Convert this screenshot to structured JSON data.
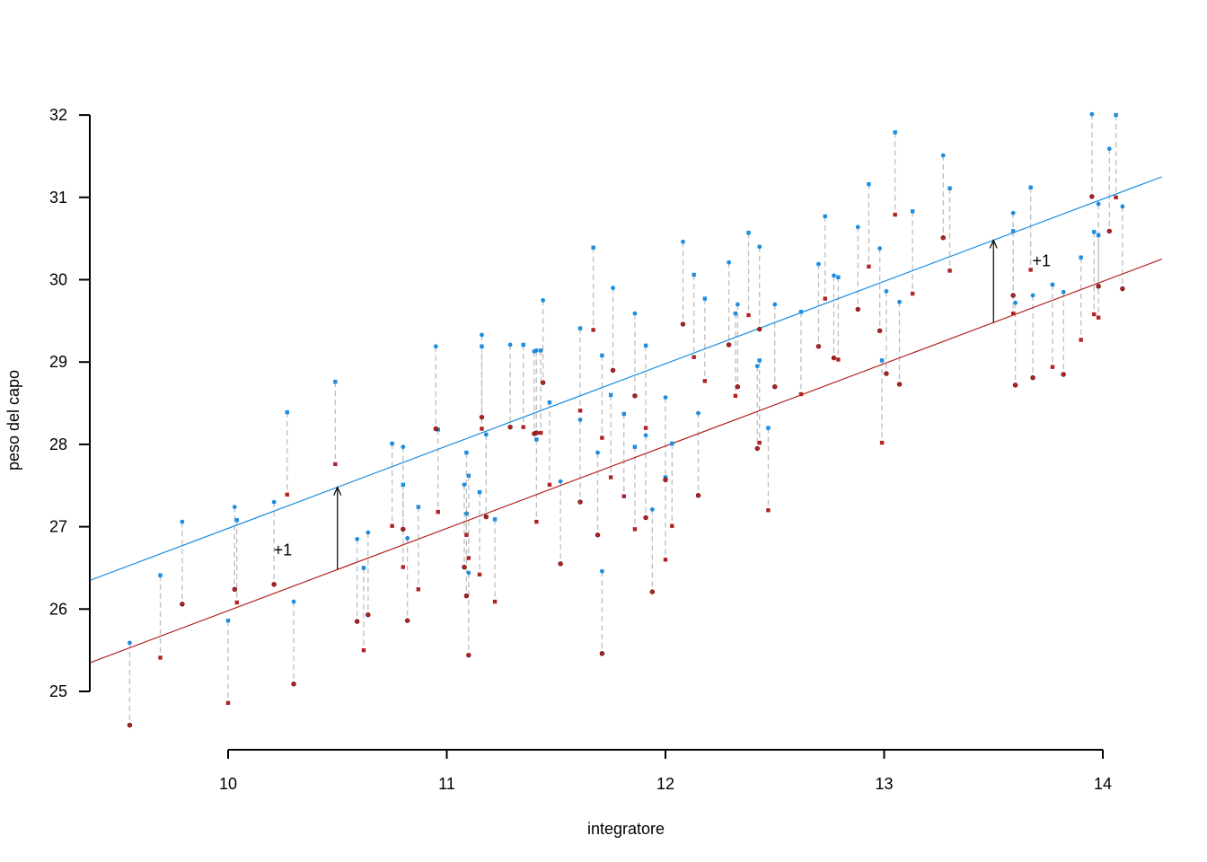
{
  "chart_data": {
    "type": "scatter",
    "title": "",
    "xlabel": "integratore",
    "ylabel": "peso del capo",
    "xlim": [
      9.37,
      14.27
    ],
    "ylim": [
      24.6,
      32.0
    ],
    "x_ticks": [
      "10",
      "11",
      "12",
      "13",
      "14"
    ],
    "y_ticks": [
      "25",
      "26",
      "27",
      "28",
      "29",
      "30",
      "31",
      "32"
    ],
    "grid": false,
    "colors": {
      "blue": "#1C8DE0",
      "red": "#B22222",
      "segment": "#BEBEBE",
      "arrow": "#000000"
    },
    "x": [
      9.55,
      9.69,
      9.79,
      10.0,
      10.03,
      10.04,
      10.21,
      10.27,
      10.3,
      10.49,
      10.59,
      10.62,
      10.64,
      10.75,
      10.8,
      10.8,
      10.82,
      10.87,
      10.95,
      10.96,
      11.08,
      11.09,
      11.09,
      11.1,
      11.1,
      11.15,
      11.16,
      11.16,
      11.18,
      11.22,
      11.29,
      11.35,
      11.4,
      11.41,
      11.41,
      11.43,
      11.44,
      11.47,
      11.52,
      11.61,
      11.61,
      11.67,
      11.69,
      11.71,
      11.71,
      11.75,
      11.76,
      11.81,
      11.86,
      11.86,
      11.91,
      11.91,
      11.94,
      12.0,
      12.0,
      12.03,
      12.08,
      12.13,
      12.15,
      12.18,
      12.29,
      12.32,
      12.33,
      12.38,
      12.42,
      12.43,
      12.43,
      12.47,
      12.5,
      12.62,
      12.7,
      12.73,
      12.77,
      12.79,
      12.88,
      12.93,
      12.98,
      12.99,
      13.01,
      13.05,
      13.07,
      13.13,
      13.27,
      13.3,
      13.59,
      13.59,
      13.6,
      13.67,
      13.68,
      13.77,
      13.82,
      13.9,
      13.95,
      13.96,
      13.98,
      13.98,
      14.03,
      14.06,
      14.09
    ],
    "series": [
      {
        "name": "blue",
        "color": "#1C8DE0",
        "y": [
          25.59,
          26.41,
          27.06,
          25.86,
          27.24,
          27.08,
          27.3,
          28.39,
          26.09,
          28.76,
          26.85,
          26.5,
          26.93,
          28.01,
          27.97,
          27.51,
          26.86,
          27.24,
          29.19,
          28.18,
          27.51,
          27.9,
          27.16,
          27.62,
          26.44,
          27.42,
          29.33,
          29.19,
          28.12,
          27.09,
          29.21,
          29.21,
          29.13,
          28.06,
          29.14,
          29.14,
          29.75,
          28.51,
          27.55,
          29.41,
          28.3,
          30.39,
          27.9,
          29.08,
          26.46,
          28.6,
          29.9,
          28.37,
          29.59,
          27.97,
          28.11,
          29.2,
          27.21,
          27.6,
          28.57,
          28.01,
          30.46,
          30.06,
          28.38,
          29.77,
          30.21,
          29.59,
          29.7,
          30.57,
          28.95,
          29.02,
          30.4,
          28.2,
          29.7,
          29.61,
          30.19,
          30.77,
          30.05,
          30.03,
          30.64,
          31.16,
          30.38,
          29.02,
          29.86,
          31.79,
          29.73,
          30.83,
          31.51,
          31.11,
          30.81,
          30.59,
          29.72,
          31.12,
          29.81,
          29.94,
          29.85,
          30.27,
          32.01,
          30.58,
          30.92,
          30.54,
          31.59,
          32.0,
          30.89
        ]
      },
      {
        "name": "red",
        "color": "#B22222",
        "y": [
          24.59,
          25.41,
          26.06,
          24.86,
          26.24,
          26.08,
          26.3,
          27.39,
          25.09,
          27.76,
          25.85,
          25.5,
          25.93,
          27.01,
          26.97,
          26.51,
          25.86,
          26.24,
          28.19,
          27.18,
          26.51,
          26.9,
          26.16,
          26.62,
          25.44,
          26.42,
          28.33,
          28.19,
          27.12,
          26.09,
          28.21,
          28.21,
          28.13,
          27.06,
          28.14,
          28.14,
          28.75,
          27.51,
          26.55,
          28.41,
          27.3,
          29.39,
          26.9,
          28.08,
          25.46,
          27.6,
          28.9,
          27.37,
          28.59,
          26.97,
          27.11,
          28.2,
          26.21,
          26.6,
          27.57,
          27.01,
          29.46,
          29.06,
          27.38,
          28.77,
          29.21,
          28.59,
          28.7,
          29.57,
          27.95,
          28.02,
          29.4,
          27.2,
          28.7,
          28.61,
          29.19,
          29.77,
          29.05,
          29.03,
          29.64,
          30.16,
          29.38,
          28.02,
          28.86,
          30.79,
          28.73,
          29.83,
          30.51,
          30.11,
          29.81,
          29.59,
          28.72,
          30.12,
          28.81,
          28.94,
          28.85,
          29.27,
          31.01,
          29.58,
          29.92,
          29.54,
          30.59,
          31.0,
          29.89
        ]
      }
    ],
    "lines": [
      {
        "name": "blue-fit",
        "color": "#1C8DE0",
        "intercept": 16.98,
        "slope": 1.0
      },
      {
        "name": "red-fit",
        "color": "#B22222",
        "intercept": 15.98,
        "slope": 1.0
      }
    ],
    "arrows": [
      {
        "x": 10.5,
        "from": 26.48,
        "to": 27.48
      },
      {
        "x": 13.5,
        "from": 29.48,
        "to": 30.48
      }
    ],
    "annotations": [
      {
        "text": "+1",
        "x": 10.25,
        "y": 26.72
      },
      {
        "text": "+1",
        "x": 13.72,
        "y": 30.23
      }
    ]
  }
}
